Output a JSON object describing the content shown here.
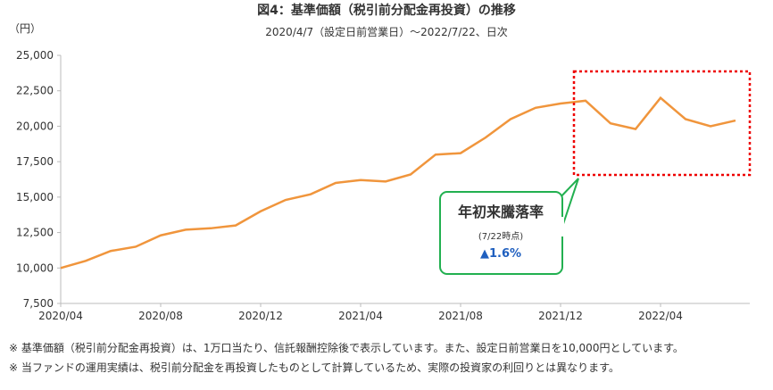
{
  "chart_data": {
    "type": "line",
    "title": "図4：基準価額（税引前分配金再投資）の推移",
    "subtitle": "2020/4/7（設定日前営業日）～2022/7/22、日次",
    "y_unit": "（円）",
    "x": [
      "2020/04",
      null,
      null,
      null,
      "2020/08",
      null,
      null,
      null,
      "2020/12",
      null,
      null,
      null,
      "2021/04",
      null,
      null,
      null,
      "2021/08",
      null,
      null,
      null,
      "2021/12",
      null,
      null,
      null,
      "2022/04",
      null,
      null,
      null
    ],
    "series": [
      {
        "name": "基準価額（税引前分配金再投資）",
        "color": "#f0953c",
        "values": [
          10000,
          10500,
          11200,
          11500,
          12300,
          12700,
          12800,
          13000,
          14000,
          14800,
          15200,
          16000,
          16200,
          16100,
          16600,
          18000,
          18100,
          19200,
          20500,
          21300,
          21600,
          21800,
          20200,
          19800,
          22000,
          20500,
          20000,
          20400
        ]
      }
    ],
    "ylim": [
      7500,
      25000
    ],
    "yticks": [
      {
        "value": 7500,
        "label": "7,500"
      },
      {
        "value": 10000,
        "label": "10,000"
      },
      {
        "value": 12500,
        "label": "12,500"
      },
      {
        "value": 15000,
        "label": "15,000"
      },
      {
        "value": 17500,
        "label": "17,500"
      },
      {
        "value": 20000,
        "label": "20,000"
      },
      {
        "value": 22500,
        "label": "22,500"
      },
      {
        "value": 25000,
        "label": "25,000"
      }
    ],
    "annotation": {
      "title": "年初来騰落率",
      "note": "(7/22時点)",
      "value_label": "▲1.6%"
    },
    "footnotes": [
      "※ 基準価額（税引前分配金再投資）は、1万口当たり、信託報酬控除後で表示しています。また、設定日前営業日を10,000円としています。",
      "※ 当ファンドの運用実績は、税引前分配金を再投資したものとして計算しているため、実際の投資家の利回りとは異なります。"
    ]
  }
}
